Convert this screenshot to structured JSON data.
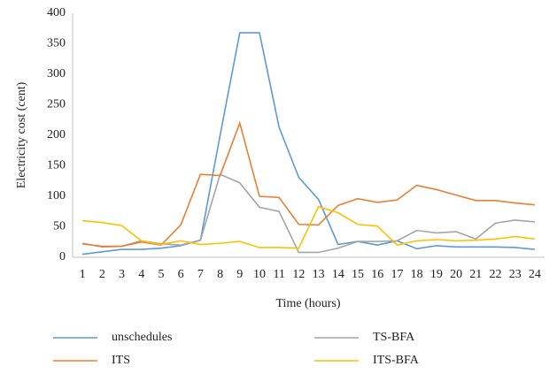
{
  "chart_data": {
    "type": "line",
    "y_label": "Electricity cost (cent)",
    "x_label": "Time (hours)",
    "categories": [
      1,
      2,
      3,
      4,
      5,
      6,
      7,
      8,
      9,
      10,
      11,
      12,
      13,
      14,
      15,
      16,
      17,
      18,
      19,
      20,
      21,
      22,
      23,
      24
    ],
    "ylim": [
      0,
      400
    ],
    "yticks": [
      0,
      50,
      100,
      150,
      200,
      250,
      300,
      350,
      400
    ],
    "grid": false,
    "legend": "bottom",
    "series": [
      {
        "name": "unschedules",
        "color": "#5b9bd5",
        "values": [
          5,
          9,
          13,
          13,
          15,
          19,
          28,
          200,
          368,
          368,
          213,
          131,
          95,
          21,
          26,
          20,
          27,
          14,
          19,
          17,
          17,
          17,
          16,
          13
        ]
      },
      {
        "name": "TS-BFA",
        "color": "#a5a5a5",
        "values": [
          23,
          17,
          18,
          27,
          22,
          20,
          28,
          136,
          122,
          82,
          75,
          8,
          8,
          15,
          26,
          26,
          27,
          44,
          40,
          42,
          30,
          56,
          61,
          58
        ]
      },
      {
        "name": "ITS",
        "color": "#ed7d31",
        "values": [
          22,
          18,
          18,
          25,
          20,
          53,
          136,
          134,
          220,
          100,
          98,
          54,
          53,
          85,
          96,
          90,
          94,
          118,
          111,
          102,
          93,
          93,
          89,
          86
        ]
      },
      {
        "name": "ITS-BFA",
        "color": "#ffc000",
        "values": [
          60,
          57,
          52,
          27,
          21,
          27,
          21,
          23,
          26,
          16,
          16,
          15,
          83,
          73,
          54,
          51,
          20,
          27,
          29,
          27,
          28,
          30,
          34,
          30
        ]
      }
    ]
  }
}
